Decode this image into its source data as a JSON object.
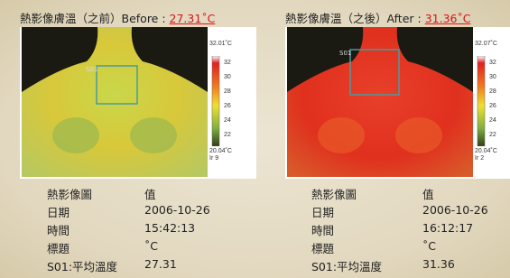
{
  "panels": [
    {
      "title": "熱影像膚溫（之前）Before : ",
      "temperature": "27.31˚C",
      "spot": "S01",
      "scale": {
        "max": "32.01˚C",
        "ticks": [
          "32",
          "30",
          "28",
          "26",
          "24",
          "22"
        ],
        "min": "20.04˚C",
        "id": "Ir 9"
      },
      "table": [
        [
          "熱影像圖",
          "值"
        ],
        [
          "日期",
          "2006-10-26"
        ],
        [
          "時間",
          "15:42:13"
        ],
        [
          "標題",
          "˚C"
        ],
        [
          "S01:平均溫度",
          "27.31"
        ]
      ]
    },
    {
      "title": "熱影像膚溫（之後）After : ",
      "temperature": "31.36˚C",
      "spot": "S01",
      "scale": {
        "max": "32.07˚C",
        "ticks": [
          "32",
          "30",
          "28",
          "26",
          "24",
          "22"
        ],
        "min": "20.04˚C",
        "id": "Ir 2"
      },
      "table": [
        [
          "熱影像圖",
          "值"
        ],
        [
          "日期",
          "2006-10-26"
        ],
        [
          "時間",
          "16:12:17"
        ],
        [
          "標題",
          "˚C"
        ],
        [
          "S01:平均溫度",
          "31.36"
        ]
      ]
    }
  ]
}
